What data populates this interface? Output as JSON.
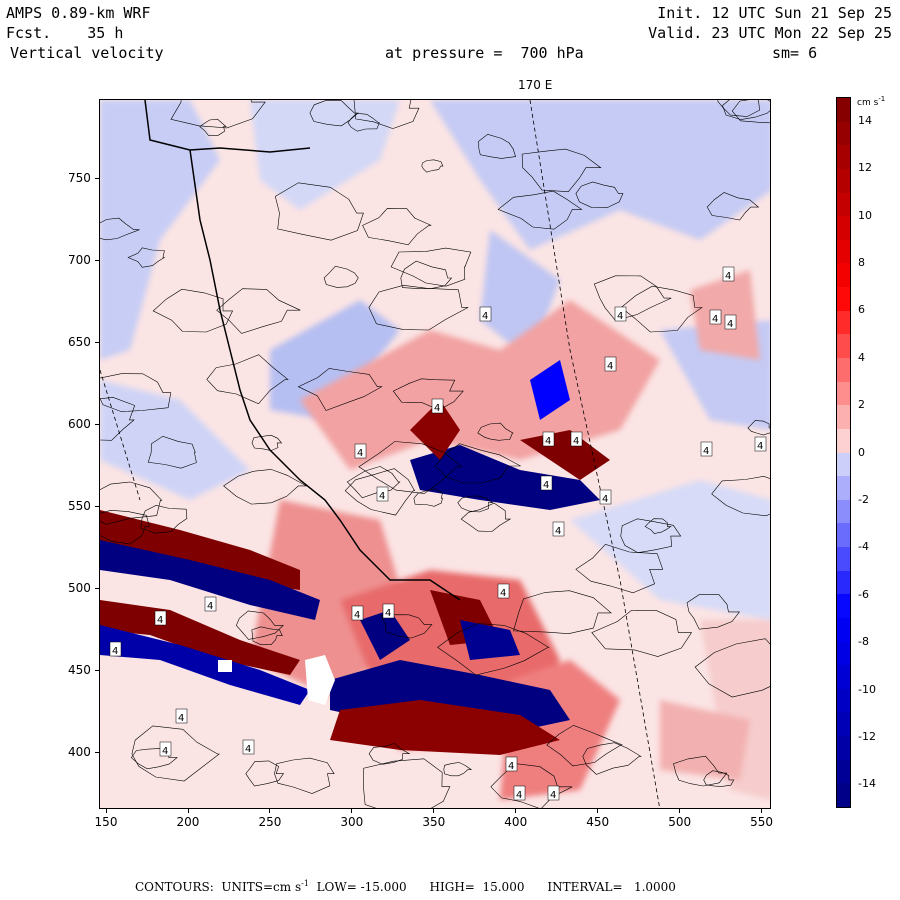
{
  "header": {
    "model": "AMPS 0.89-km WRF",
    "forecast": "Fcst.    35 h",
    "field": "Vertical velocity",
    "init": "Init. 12 UTC Sun 21 Sep 25",
    "valid": "Valid. 23 UTC Mon 22 Sep 25",
    "pressure": "at pressure =  700 hPa",
    "smoothing": "sm= 6",
    "meridian_label": "170 E"
  },
  "axes": {
    "x_ticks": [
      "150",
      "200",
      "250",
      "300",
      "350",
      "400",
      "450",
      "500",
      "550"
    ],
    "x_values": [
      150,
      200,
      250,
      300,
      350,
      400,
      450,
      500,
      550
    ],
    "y_ticks": [
      "400",
      "450",
      "500",
      "550",
      "600",
      "650",
      "700",
      "750"
    ],
    "y_values": [
      400,
      450,
      500,
      550,
      600,
      650,
      700,
      750
    ],
    "xlim": [
      146,
      556
    ],
    "ylim": [
      365,
      798
    ]
  },
  "colorbar": {
    "unit_label": "cm s",
    "unit_exp": "-1",
    "labels": [
      "14",
      "12",
      "10",
      "8",
      "6",
      "4",
      "2",
      "0",
      "-2",
      "-4",
      "-6",
      "-8",
      "-10",
      "-12",
      "-14"
    ],
    "colors": {
      "neg_strong": "#000080",
      "neg_mid": "#0000ff",
      "neg_light": "#dde0fb",
      "pos_light": "#fde2e2",
      "pos_mid": "#ff0000",
      "pos_strong": "#7f0000"
    }
  },
  "footer": {
    "contours": "CONTOURS:",
    "units": "UNITS=cm s",
    "units_exp": "-1",
    "low": "LOW= -15.000",
    "high": "HIGH=  15.000",
    "interval": "INTERVAL=   1.0000"
  },
  "map_labels": [
    "4",
    "4",
    "4",
    "4",
    "4",
    "4",
    "4",
    "4",
    "4",
    "4",
    "4",
    "4",
    "4",
    "4",
    "4",
    "4",
    "4",
    "4",
    "4",
    "4",
    "4",
    "4",
    "4",
    "4",
    "4",
    "4",
    "4",
    "4"
  ]
}
